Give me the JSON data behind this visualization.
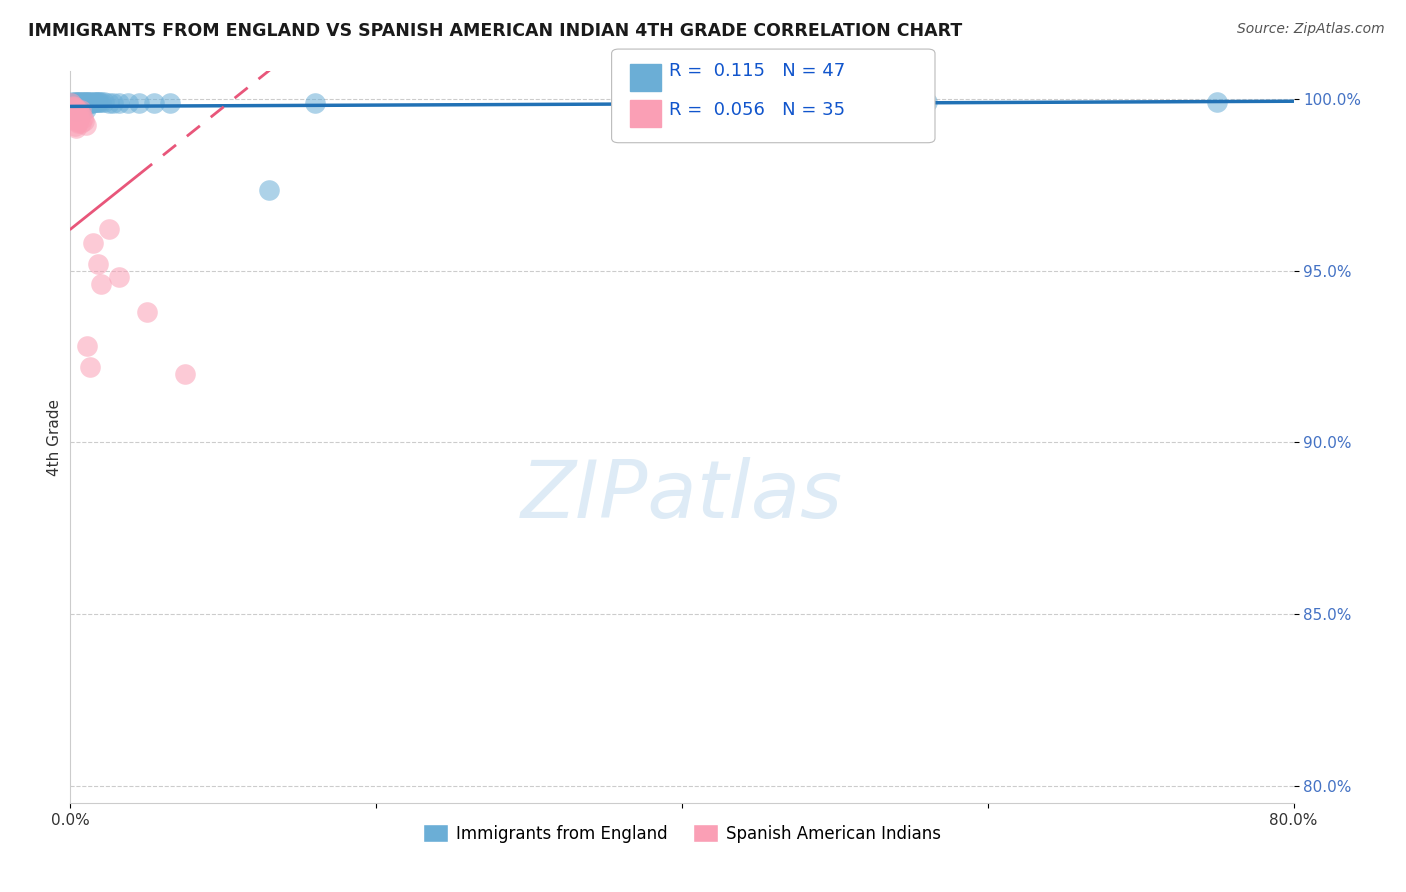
{
  "title": "IMMIGRANTS FROM ENGLAND VS SPANISH AMERICAN INDIAN 4TH GRADE CORRELATION CHART",
  "source": "Source: ZipAtlas.com",
  "xlabel_label": "Immigrants from England",
  "ylabel_label": "4th Grade",
  "legend_label1": "Immigrants from England",
  "legend_label2": "Spanish American Indians",
  "R1": 0.115,
  "N1": 47,
  "R2": 0.056,
  "N2": 35,
  "color1": "#6baed6",
  "color2": "#fa9fb5",
  "line1_color": "#2171b5",
  "line2_color": "#e8567a",
  "xlim": [
    0.0,
    0.8
  ],
  "ylim": [
    0.795,
    1.008
  ],
  "ytick_positions": [
    1.0,
    0.95,
    0.9,
    0.85,
    0.8
  ],
  "ytick_labels": [
    "100.0%",
    "95.0%",
    "90.0%",
    "85.0%",
    "80.0%"
  ],
  "blue_x": [
    0.001,
    0.001,
    0.002,
    0.002,
    0.003,
    0.003,
    0.004,
    0.004,
    0.004,
    0.005,
    0.005,
    0.005,
    0.006,
    0.006,
    0.007,
    0.007,
    0.008,
    0.008,
    0.009,
    0.009,
    0.01,
    0.01,
    0.01,
    0.011,
    0.011,
    0.012,
    0.012,
    0.013,
    0.014,
    0.015,
    0.016,
    0.017,
    0.018,
    0.019,
    0.02,
    0.022,
    0.025,
    0.028,
    0.032,
    0.038,
    0.045,
    0.055,
    0.065,
    0.13,
    0.16,
    0.56,
    0.75
  ],
  "blue_y": [
    0.999,
    0.9975,
    0.9988,
    0.9972,
    0.999,
    0.9978,
    0.999,
    0.9978,
    0.9965,
    0.999,
    0.998,
    0.9968,
    0.999,
    0.998,
    0.999,
    0.9981,
    0.999,
    0.9982,
    0.999,
    0.9983,
    0.999,
    0.9984,
    0.997,
    0.999,
    0.9985,
    0.999,
    0.9986,
    0.999,
    0.9988,
    0.999,
    0.999,
    0.999,
    0.9991,
    0.9991,
    0.999,
    0.999,
    0.9988,
    0.9989,
    0.9988,
    0.9987,
    0.9989,
    0.9988,
    0.9988,
    0.9735,
    0.9988,
    0.999,
    0.999
  ],
  "pink_x": [
    0.0005,
    0.001,
    0.001,
    0.001,
    0.002,
    0.002,
    0.002,
    0.003,
    0.003,
    0.003,
    0.003,
    0.004,
    0.004,
    0.004,
    0.004,
    0.005,
    0.005,
    0.005,
    0.006,
    0.006,
    0.007,
    0.007,
    0.007,
    0.008,
    0.009,
    0.01,
    0.011,
    0.013,
    0.015,
    0.018,
    0.02,
    0.025,
    0.032,
    0.05,
    0.075
  ],
  "pink_y": [
    0.9988,
    0.9975,
    0.9958,
    0.9942,
    0.998,
    0.9962,
    0.9944,
    0.9975,
    0.9958,
    0.994,
    0.9922,
    0.997,
    0.9954,
    0.9935,
    0.9914,
    0.9968,
    0.995,
    0.993,
    0.9962,
    0.9942,
    0.9968,
    0.9952,
    0.993,
    0.9945,
    0.9935,
    0.9925,
    0.928,
    0.922,
    0.958,
    0.952,
    0.946,
    0.962,
    0.948,
    0.938,
    0.92
  ],
  "blue_trend": [
    0.0,
    0.8,
    0.998,
    0.9995
  ],
  "pink_solid": [
    0.0,
    0.045,
    0.962,
    0.978
  ],
  "pink_dashed": [
    0.045,
    0.8,
    0.978,
    0.998
  ]
}
